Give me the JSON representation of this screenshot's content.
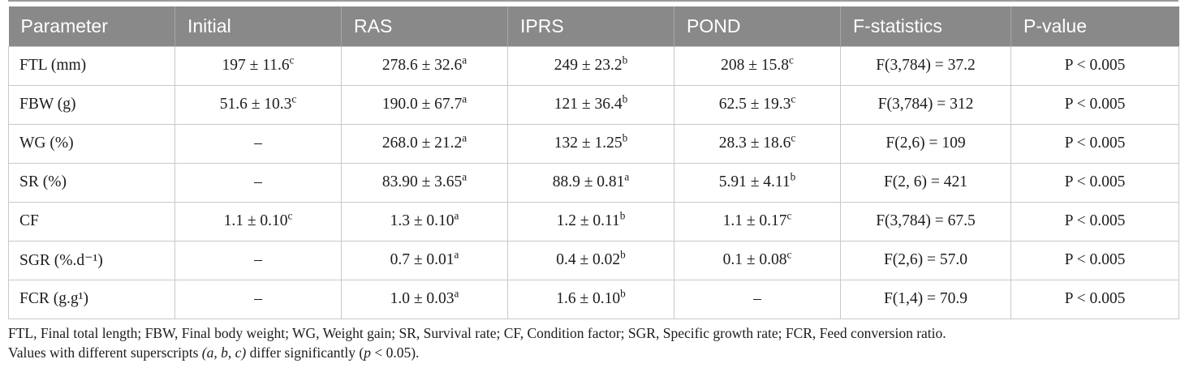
{
  "colors": {
    "header_bg": "#898989",
    "header_text": "#ffffff",
    "header_divider": "#a6a6a6",
    "row_border": "#c9c9c9",
    "body_text": "#1c1c1c",
    "top_rule": "#9b9b9b"
  },
  "table": {
    "columns": [
      "Parameter",
      "Initial",
      "RAS",
      "IPRS",
      "POND",
      "F-statistics",
      "P-value"
    ],
    "rows": [
      {
        "parameter": "FTL (mm)",
        "cells": [
          "197 ± 11.6^c",
          "278.6 ± 32.6^a",
          "249 ± 23.2^b",
          "208 ± 15.8^c",
          "F(3,784) = 37.2",
          "P < 0.005"
        ]
      },
      {
        "parameter": "FBW (g)",
        "cells": [
          "51.6 ± 10.3^c",
          "190.0 ± 67.7^a",
          "121 ± 36.4^b",
          "62.5 ± 19.3^c",
          "F(3,784) = 312",
          "P < 0.005"
        ]
      },
      {
        "parameter": "WG (%)",
        "cells": [
          "–",
          "268.0 ± 21.2^a",
          "132 ± 1.25^b",
          "28.3 ± 18.6^c",
          "F(2,6) = 109",
          "P < 0.005"
        ]
      },
      {
        "parameter": "SR (%)",
        "cells": [
          "–",
          "83.90 ± 3.65^a",
          "88.9 ± 0.81^a",
          "5.91 ± 4.11^b",
          "F(2, 6) = 421",
          "P < 0.005"
        ]
      },
      {
        "parameter": "CF",
        "cells": [
          "1.1 ± 0.10^c",
          "1.3 ± 0.10^a",
          "1.2 ± 0.11^b",
          "1.1 ± 0.17^c",
          "F(3,784) = 67.5",
          "P < 0.005"
        ]
      },
      {
        "parameter": "SGR (%.d⁻¹)",
        "cells": [
          "–",
          "0.7 ± 0.01^a",
          "0.4 ± 0.02^b",
          "0.1 ± 0.08^c",
          "F(2,6) = 57.0",
          "P < 0.005"
        ]
      },
      {
        "parameter": "FCR (g.g¹)",
        "cells": [
          "–",
          "1.0 ± 0.03^a",
          "1.6 ± 0.10^b",
          "–",
          "F(1,4) = 70.9",
          "P < 0.005"
        ]
      }
    ]
  },
  "footnotes": {
    "line1": "FTL, Final total length; FBW, Final body weight; WG, Weight gain; SR, Survival rate; CF, Condition factor; SGR, Specific growth rate; FCR, Feed conversion ratio.",
    "line2_segments": [
      {
        "text": "Values with different superscripts ",
        "italic": false
      },
      {
        "text": "(a, b, c)",
        "italic": true
      },
      {
        "text": " differ significantly (",
        "italic": false
      },
      {
        "text": "p",
        "italic": true
      },
      {
        "text": " < 0.05).",
        "italic": false
      }
    ]
  }
}
